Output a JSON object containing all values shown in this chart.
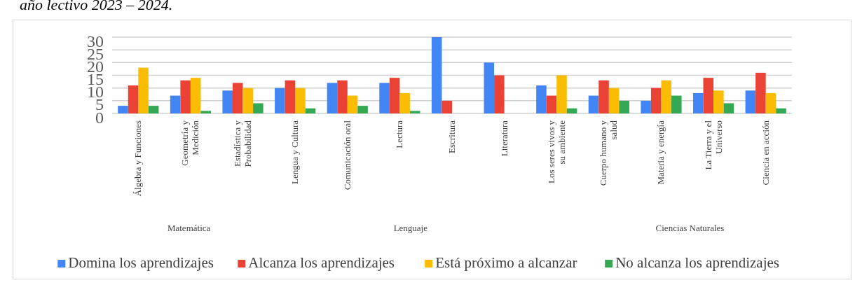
{
  "chart_data": {
    "type": "bar",
    "title": "año lectivo 2023 – 2024.",
    "categories": [
      "Álgebra y Funciones",
      "Geometría y Medición",
      "Estadística y Probabilidad",
      "Lengua y Cultura",
      "Comunicación oral",
      "Lectura",
      "Escritura",
      "Literatura",
      "Los seres vivos y su ambiente",
      "Cuerpo humano y salud",
      "Materia y energía",
      "La Tierra y el Universo",
      "Ciencia en acción"
    ],
    "series": [
      {
        "name": "Domina los aprendizajes",
        "color": "#4285f4",
        "values": [
          3,
          7,
          9,
          10,
          12,
          12,
          30,
          20,
          11,
          7,
          5,
          8,
          9
        ]
      },
      {
        "name": "Alcanza los aprendizajes",
        "color": "#ea4335",
        "values": [
          11,
          13,
          12,
          13,
          13,
          14,
          5,
          15,
          7,
          13,
          10,
          14,
          16
        ]
      },
      {
        "name": "Está próximo a alcanzar",
        "color": "#fbbc04",
        "values": [
          18,
          14,
          10,
          10,
          7,
          8,
          0,
          0,
          15,
          10,
          13,
          9,
          8
        ]
      },
      {
        "name": "No alcanza los aprendizajes",
        "color": "#34a853",
        "values": [
          3,
          1,
          4,
          2,
          3,
          1,
          0,
          0,
          2,
          5,
          7,
          4,
          2
        ]
      }
    ],
    "ylim": [
      0,
      30
    ],
    "yticks": [
      0,
      5,
      10,
      15,
      20,
      25,
      30
    ],
    "grid": "y",
    "legend": "bottom",
    "annotations": [
      "Matemática",
      "Lenguaje",
      "Ciencias Naturales"
    ]
  }
}
